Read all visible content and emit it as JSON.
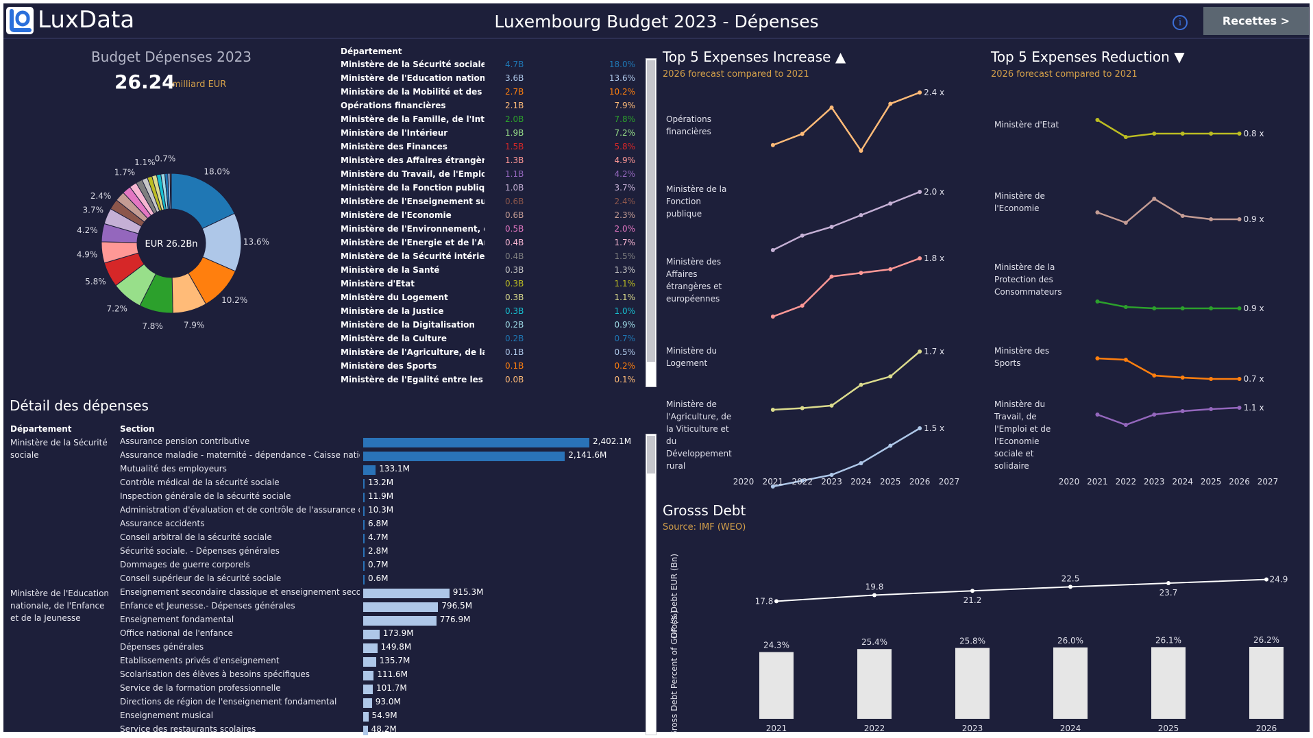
{
  "header": {
    "logo_text": "LuxData",
    "title": "Luxembourg Budget 2023 - Dépenses",
    "info_icon": "info-icon",
    "nav_button": "Recettes >"
  },
  "colors": {
    "background": "#1d1f3a",
    "accent": "#d4a04a",
    "button": "#5b6671"
  },
  "overview": {
    "title": "Budget Dépenses 2023",
    "total": "26.24",
    "unit": "milliard EUR",
    "center_label": "EUR 26.2Bn"
  },
  "dept_table": {
    "header": "Département",
    "rows": [
      {
        "name": "Ministère de la Sécurité sociale",
        "value": "4.7B",
        "pct": "18.0%",
        "color": "#1f77b4"
      },
      {
        "name": "Ministère de l'Education nationale..",
        "value": "3.6B",
        "pct": "13.6%",
        "color": "#aec7e8"
      },
      {
        "name": "Ministère de la Mobilité et des Tra..",
        "value": "2.7B",
        "pct": "10.2%",
        "color": "#ff7f0e"
      },
      {
        "name": "Opérations financières",
        "value": "2.1B",
        "pct": "7.9%",
        "color": "#ffbb78"
      },
      {
        "name": "Ministère de la Famille, de l'Intégr..",
        "value": "2.0B",
        "pct": "7.8%",
        "color": "#2ca02c"
      },
      {
        "name": "Ministère de l'Intérieur",
        "value": "1.9B",
        "pct": "7.2%",
        "color": "#98df8a"
      },
      {
        "name": "Ministère des Finances",
        "value": "1.5B",
        "pct": "5.8%",
        "color": "#d62728"
      },
      {
        "name": "Ministère des Affaires étrangères ..",
        "value": "1.3B",
        "pct": "4.9%",
        "color": "#ff9896"
      },
      {
        "name": "Ministère du Travail, de l'Emploi e..",
        "value": "1.1B",
        "pct": "4.2%",
        "color": "#9467bd"
      },
      {
        "name": "Ministère de la Fonction publique",
        "value": "1.0B",
        "pct": "3.7%",
        "color": "#c5b0d5"
      },
      {
        "name": "Ministère de l'Enseignement supé..",
        "value": "0.6B",
        "pct": "2.4%",
        "color": "#8c564b"
      },
      {
        "name": "Ministère de l'Economie",
        "value": "0.6B",
        "pct": "2.3%",
        "color": "#c49c94"
      },
      {
        "name": "Ministère de l'Environnement, du ..",
        "value": "0.5B",
        "pct": "2.0%",
        "color": "#e377c2"
      },
      {
        "name": "Ministère de l'Energie et de l'Amé..",
        "value": "0.4B",
        "pct": "1.7%",
        "color": "#f7b6d2"
      },
      {
        "name": "Ministère de la Sécurité intérieure",
        "value": "0.4B",
        "pct": "1.5%",
        "color": "#7f7f7f"
      },
      {
        "name": "Ministère de la Santé",
        "value": "0.3B",
        "pct": "1.3%",
        "color": "#c7c7c7"
      },
      {
        "name": "Ministère d'Etat",
        "value": "0.3B",
        "pct": "1.1%",
        "color": "#bcbd22"
      },
      {
        "name": "Ministère du Logement",
        "value": "0.3B",
        "pct": "1.1%",
        "color": "#dbdb8d"
      },
      {
        "name": "Ministère de la Justice",
        "value": "0.3B",
        "pct": "1.0%",
        "color": "#17becf"
      },
      {
        "name": "Ministère de la Digitalisation",
        "value": "0.2B",
        "pct": "0.9%",
        "color": "#9edae5"
      },
      {
        "name": "Ministère de la Culture",
        "value": "0.2B",
        "pct": "0.7%",
        "color": "#1f77b4"
      },
      {
        "name": "Ministère de l'Agriculture, de la Vi..",
        "value": "0.1B",
        "pct": "0.5%",
        "color": "#aec7e8"
      },
      {
        "name": "Ministère des Sports",
        "value": "0.1B",
        "pct": "0.2%",
        "color": "#ff7f0e"
      },
      {
        "name": "Ministère de l'Egalité entre les Fe..",
        "value": "0.0B",
        "pct": "0.1%",
        "color": "#ffbb78"
      }
    ]
  },
  "detail": {
    "title": "Détail des dépenses",
    "col_dept": "Département",
    "col_section": "Section",
    "groups": [
      {
        "dept": "Ministère de la Sécurité sociale",
        "color": "#2a73b8",
        "sections": [
          {
            "name": "Assurance pension contributive",
            "value": 2402.1,
            "label": "2,402.1M"
          },
          {
            "name": "Assurance maladie - maternité - dépendance - Caisse nationa..",
            "value": 2141.6,
            "label": "2,141.6M"
          },
          {
            "name": "Mutualité des employeurs",
            "value": 133.1,
            "label": "133.1M"
          },
          {
            "name": "Contrôle médical de la sécurité sociale",
            "value": 13.2,
            "label": "13.2M"
          },
          {
            "name": "Inspection générale de la sécurité sociale",
            "value": 11.9,
            "label": "11.9M"
          },
          {
            "name": "Administration d'évaluation et de contrôle de l'assurance dé..",
            "value": 10.3,
            "label": "10.3M"
          },
          {
            "name": "Assurance accidents",
            "value": 6.8,
            "label": "6.8M"
          },
          {
            "name": "Conseil arbitral de la sécurité sociale",
            "value": 4.7,
            "label": "4.7M"
          },
          {
            "name": "Sécurité sociale. - Dépenses générales",
            "value": 2.8,
            "label": "2.8M"
          },
          {
            "name": "Dommages de guerre corporels",
            "value": 0.7,
            "label": "0.7M"
          },
          {
            "name": "Conseil supérieur de la sécurité sociale",
            "value": 0.6,
            "label": "0.6M"
          }
        ]
      },
      {
        "dept": "Ministère de l'Education nationale, de l'Enfance et de la Jeunesse",
        "color": "#aec7e8",
        "sections": [
          {
            "name": "Enseignement secondaire classique et enseignement second..",
            "value": 915.3,
            "label": "915.3M"
          },
          {
            "name": "Enfance et Jeunesse.- Dépenses générales",
            "value": 796.5,
            "label": "796.5M"
          },
          {
            "name": "Enseignement fondamental",
            "value": 776.9,
            "label": "776.9M"
          },
          {
            "name": "Office national de l'enfance",
            "value": 173.9,
            "label": "173.9M"
          },
          {
            "name": "Dépenses générales",
            "value": 149.8,
            "label": "149.8M"
          },
          {
            "name": "Etablissements privés d'enseignement",
            "value": 135.7,
            "label": "135.7M"
          },
          {
            "name": "Scolarisation des élèves à besoins spécifiques",
            "value": 111.6,
            "label": "111.6M"
          },
          {
            "name": "Service de la formation professionnelle",
            "value": 101.7,
            "label": "101.7M"
          },
          {
            "name": "Directions de région de l'enseignement fondamental",
            "value": 93.0,
            "label": "93.0M"
          },
          {
            "name": "Enseignement musical",
            "value": 54.9,
            "label": "54.9M"
          },
          {
            "name": "Service des restaurants scolaires",
            "value": 48.2,
            "label": "48.2M"
          }
        ]
      }
    ]
  },
  "increase": {
    "title": "Top 5 Expenses Increase",
    "arrow": "▲",
    "subtitle": "2026 forecast compared to 2021",
    "rows": [
      {
        "label": "Opérations financières",
        "color": "#ffbb78",
        "values": [
          1.0,
          1.3,
          2.0,
          0.85,
          2.1,
          2.4
        ],
        "end_label": "2.4 x"
      },
      {
        "label": "Ministère de la Fonction publique",
        "color": "#c5b0d5",
        "values": [
          1.0,
          1.25,
          1.4,
          1.6,
          1.8,
          2.0
        ],
        "end_label": "2.0 x"
      },
      {
        "label": "Ministère des Affaires étrangères et européennes",
        "color": "#ff9896",
        "values": [
          1.0,
          1.15,
          1.55,
          1.6,
          1.65,
          1.8
        ],
        "end_label": "1.8 x"
      },
      {
        "label": "Ministère du Logement",
        "color": "#dbdb8d",
        "values": [
          1.0,
          1.02,
          1.05,
          1.3,
          1.4,
          1.7
        ],
        "end_label": "1.7 x"
      },
      {
        "label": "Ministère de l'Agriculture, de la Viticulture et du Développement rural",
        "color": "#aec7e8",
        "values": [
          1.0,
          1.05,
          1.1,
          1.2,
          1.35,
          1.5
        ],
        "end_label": "1.5 x"
      }
    ]
  },
  "reduction": {
    "title": "Top 5 Expenses Reduction",
    "arrow": "▼",
    "subtitle": "2026 forecast compared to 2021",
    "rows": [
      {
        "label": "Ministère d'Etat",
        "color": "#bcbd22",
        "values": [
          1.0,
          0.75,
          0.8,
          0.8,
          0.8,
          0.8
        ],
        "end_label": "0.8 x"
      },
      {
        "label": "Ministère de l'Economie",
        "color": "#c49c94",
        "values": [
          1.0,
          0.85,
          1.2,
          0.95,
          0.9,
          0.9
        ],
        "end_label": "0.9 x"
      },
      {
        "label": "Ministère de la Protection des Consommateurs",
        "color": "#2ca02c",
        "values": [
          1.0,
          0.92,
          0.9,
          0.9,
          0.9,
          0.9
        ],
        "end_label": "0.9 x"
      },
      {
        "label": "Ministère des Sports",
        "color": "#ff7f0e",
        "values": [
          1.0,
          0.98,
          0.75,
          0.72,
          0.7,
          0.7
        ],
        "end_label": "0.7 x"
      },
      {
        "label": "Ministère du Travail, de l'Emploi et de l'Economie sociale et solidaire",
        "color": "#9467bd",
        "values": [
          1.0,
          0.85,
          1.0,
          1.05,
          1.08,
          1.1
        ],
        "end_label": "1.1 x"
      }
    ],
    "x_ticks": [
      "2020",
      "2021",
      "2022",
      "2023",
      "2024",
      "2025",
      "2026",
      "2027"
    ]
  },
  "debt": {
    "title": "Grosss Debt",
    "subtitle": "Source: IMF (WEO)",
    "ylabel_top": "Gross Debt EUR (Bn)",
    "ylabel_bottom": "Gross Debt Percent of GDP (%)"
  },
  "chart_data": [
    {
      "type": "pie",
      "title": "Budget Dépenses 2023",
      "categories": [
        "Sécurité sociale",
        "Education nationale",
        "Mobilité et Travaux publics",
        "Opérations financières",
        "Famille et Intégration",
        "Intérieur",
        "Finances",
        "Affaires étrangères",
        "Travail et Emploi",
        "Fonction publique",
        "Enseignement supérieur",
        "Economie",
        "Environnement",
        "Energie et Aménagement",
        "Sécurité intérieure",
        "Santé",
        "Etat",
        "Logement",
        "Justice",
        "Digitalisation",
        "Culture",
        "Agriculture",
        "Sports",
        "Egalité"
      ],
      "values": [
        18.0,
        13.6,
        10.2,
        7.9,
        7.8,
        7.2,
        5.8,
        4.9,
        4.2,
        3.7,
        2.4,
        2.3,
        2.0,
        1.7,
        1.5,
        1.3,
        1.1,
        1.1,
        1.0,
        0.9,
        0.7,
        0.5,
        0.2,
        0.1
      ],
      "colors": [
        "#1f77b4",
        "#aec7e8",
        "#ff7f0e",
        "#ffbb78",
        "#2ca02c",
        "#98df8a",
        "#d62728",
        "#ff9896",
        "#9467bd",
        "#c5b0d5",
        "#8c564b",
        "#c49c94",
        "#e377c2",
        "#f7b6d2",
        "#7f7f7f",
        "#c7c7c7",
        "#bcbd22",
        "#dbdb8d",
        "#17becf",
        "#9edae5",
        "#1f77b4",
        "#aec7e8",
        "#ff7f0e",
        "#ffbb78"
      ],
      "labeled": [
        "18.0%",
        "13.6%",
        "10.2%",
        "7.9%",
        "7.8%",
        "7.2%",
        "5.8%",
        "4.9%",
        "4.2%",
        "3.7%",
        "2.4%",
        null,
        null,
        "1.7%",
        null,
        null,
        "1.1%",
        null,
        null,
        null,
        "0.7%",
        null,
        null,
        null
      ]
    },
    {
      "type": "line",
      "title": "Top 5 Expenses Increase",
      "x": [
        2021,
        2022,
        2023,
        2024,
        2025,
        2026
      ],
      "xlim": [
        2020,
        2027
      ]
    },
    {
      "type": "line",
      "title": "Top 5 Expenses Reduction",
      "x": [
        2021,
        2022,
        2023,
        2024,
        2025,
        2026
      ],
      "xlim": [
        2020,
        2027
      ]
    },
    {
      "type": "line",
      "title": "Gross Debt EUR (Bn)",
      "x": [
        2021,
        2022,
        2023,
        2024,
        2025,
        2026
      ],
      "values": [
        17.8,
        19.8,
        21.2,
        22.5,
        23.7,
        24.9
      ],
      "labels": [
        "17.8",
        "19.8",
        "21.2",
        "22.5",
        "23.7",
        "24.9"
      ]
    },
    {
      "type": "bar",
      "title": "Gross Debt Percent of GDP (%)",
      "categories": [
        "2021",
        "2022",
        "2023",
        "2024",
        "2025",
        "2026"
      ],
      "values": [
        24.3,
        25.4,
        25.8,
        26.0,
        26.1,
        26.2
      ],
      "labels": [
        "24.3%",
        "25.4%",
        "25.8%",
        "26.0%",
        "26.1%",
        "26.2%"
      ],
      "ylim": [
        0,
        30
      ]
    }
  ]
}
